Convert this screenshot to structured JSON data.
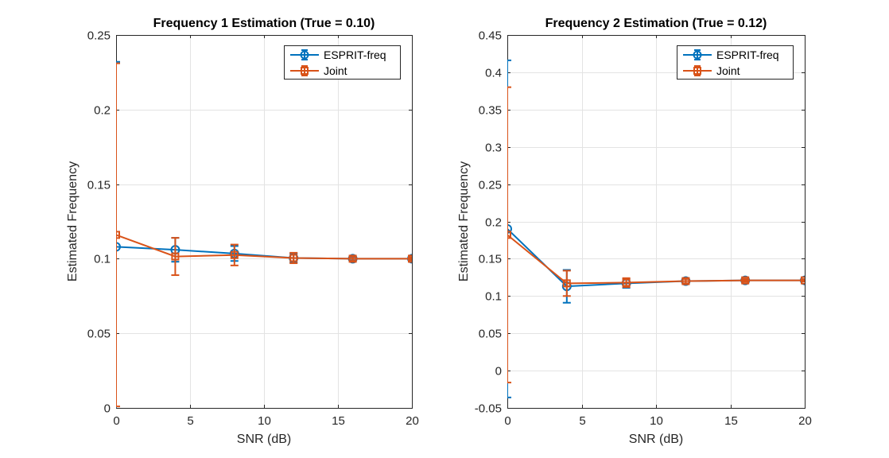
{
  "chart_data": [
    {
      "type": "line",
      "title": "Frequency 1 Estimation (True = 0.10)",
      "xlabel": "SNR (dB)",
      "ylabel": "Estimated Frequency",
      "xlim": [
        0,
        20
      ],
      "ylim": [
        0,
        0.25
      ],
      "xticks": [
        0,
        5,
        10,
        15,
        20
      ],
      "yticks": [
        0,
        0.05,
        0.1,
        0.15,
        0.2,
        0.25
      ],
      "xtick_labels": [
        "0",
        "5",
        "10",
        "15",
        "20"
      ],
      "ytick_labels": [
        "0",
        "0.05",
        "0.1",
        "0.15",
        "0.2",
        "0.25"
      ],
      "grid": true,
      "legend_position": "top-right",
      "x": [
        0,
        4,
        8,
        12,
        16,
        20
      ],
      "series": [
        {
          "name": "ESPRIT-freq",
          "color": "#0072BD",
          "marker": "circle",
          "values": [
            0.108,
            0.106,
            0.1035,
            0.1005,
            0.1,
            0.1
          ],
          "error": [
            0.124,
            0.008,
            0.005,
            0.003,
            0.0012,
            0.001
          ]
        },
        {
          "name": "Joint",
          "color": "#D95319",
          "marker": "square",
          "values": [
            0.116,
            0.1015,
            0.1025,
            0.1005,
            0.1,
            0.1
          ],
          "error": [
            0.115,
            0.0125,
            0.007,
            0.0035,
            0.0015,
            0.001
          ]
        }
      ]
    },
    {
      "type": "line",
      "title": "Frequency 2 Estimation (True = 0.12)",
      "xlabel": "SNR (dB)",
      "ylabel": "Estimated Frequency",
      "xlim": [
        0,
        20
      ],
      "ylim": [
        -0.05,
        0.45
      ],
      "xticks": [
        0,
        5,
        10,
        15,
        20
      ],
      "yticks": [
        -0.05,
        0,
        0.05,
        0.1,
        0.15,
        0.2,
        0.25,
        0.3,
        0.35,
        0.4,
        0.45
      ],
      "xtick_labels": [
        "0",
        "5",
        "10",
        "15",
        "20"
      ],
      "ytick_labels": [
        "-0.05",
        "0",
        "0.05",
        "0.1",
        "0.15",
        "0.2",
        "0.25",
        "0.3",
        "0.35",
        "0.4",
        "0.45"
      ],
      "grid": true,
      "legend_position": "top-right",
      "x": [
        0,
        4,
        8,
        12,
        16,
        20
      ],
      "series": [
        {
          "name": "ESPRIT-freq",
          "color": "#0072BD",
          "marker": "circle",
          "values": [
            0.19,
            0.113,
            0.117,
            0.12,
            0.121,
            0.121
          ],
          "error": [
            0.226,
            0.022,
            0.006,
            0.003,
            0.002,
            0.0015
          ]
        },
        {
          "name": "Joint",
          "color": "#D95319",
          "marker": "square",
          "values": [
            0.182,
            0.117,
            0.118,
            0.12,
            0.121,
            0.121
          ],
          "error": [
            0.198,
            0.017,
            0.006,
            0.003,
            0.002,
            0.0015
          ]
        }
      ]
    }
  ]
}
